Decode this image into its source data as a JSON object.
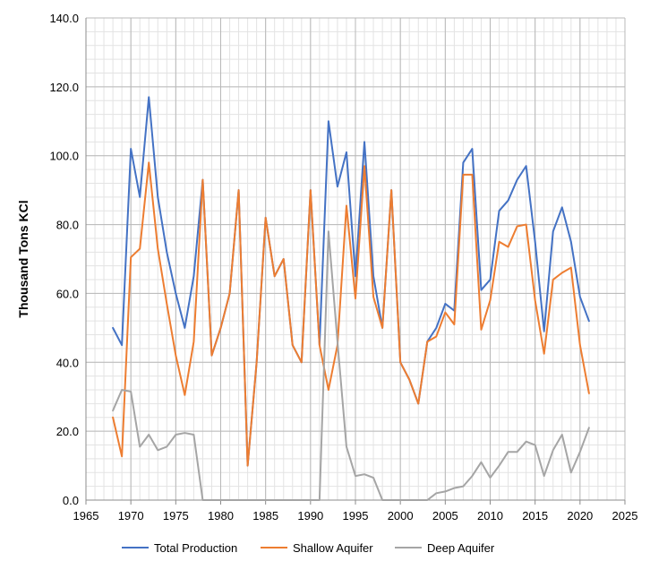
{
  "chart_data": {
    "type": "line",
    "title": "",
    "xlabel": "",
    "ylabel": "Thousand Tons KCl",
    "xlim": [
      1965,
      2025
    ],
    "ylim": [
      0,
      140
    ],
    "x_ticks": [
      1965,
      1970,
      1975,
      1980,
      1985,
      1990,
      1995,
      2000,
      2005,
      2010,
      2015,
      2020,
      2025
    ],
    "y_ticks": [
      0,
      20,
      40,
      60,
      80,
      100,
      120,
      140
    ],
    "y_tick_labels": [
      "0.0",
      "20.0",
      "40.0",
      "60.0",
      "80.0",
      "100.0",
      "120.0",
      "140.0"
    ],
    "x_minor_step": 1,
    "y_minor_step": 4,
    "grid": true,
    "legend_position": "bottom",
    "x": [
      1968,
      1969,
      1970,
      1971,
      1972,
      1973,
      1974,
      1975,
      1976,
      1977,
      1978,
      1979,
      1980,
      1981,
      1982,
      1983,
      1984,
      1985,
      1986,
      1987,
      1988,
      1989,
      1990,
      1991,
      1992,
      1993,
      1994,
      1995,
      1996,
      1997,
      1998,
      1999,
      2000,
      2001,
      2002,
      2003,
      2004,
      2005,
      2006,
      2007,
      2008,
      2009,
      2010,
      2011,
      2012,
      2013,
      2014,
      2015,
      2016,
      2017,
      2018,
      2019,
      2020,
      2021
    ],
    "series": [
      {
        "name": "Total Production",
        "color": "#4472C4",
        "values": [
          50,
          45,
          102,
          88,
          117,
          88,
          72,
          60,
          50,
          65,
          93,
          42,
          50,
          60,
          90,
          10,
          40,
          82,
          65,
          70,
          45,
          40,
          90,
          45,
          110,
          91,
          101,
          65,
          104,
          65,
          50,
          90,
          40,
          35,
          28,
          46,
          50,
          57,
          55,
          98,
          102,
          61,
          64,
          84,
          87,
          93,
          97,
          75,
          49,
          78,
          85,
          75,
          59,
          52
        ]
      },
      {
        "name": "Shallow Aquifer",
        "color": "#ED7D31",
        "values": [
          24,
          12.7,
          70.5,
          73,
          98,
          73,
          57,
          42,
          30.5,
          46,
          93,
          42,
          50,
          60,
          90,
          10,
          40,
          82,
          65,
          70,
          45,
          40,
          90,
          45,
          32,
          45,
          85.5,
          58.5,
          97,
          59,
          50,
          90,
          40,
          35,
          28,
          46,
          47.5,
          54.5,
          51,
          94.5,
          94.5,
          49.5,
          58,
          75,
          73.5,
          79.5,
          80,
          58,
          42.5,
          64,
          66,
          67.5,
          45,
          31
        ]
      },
      {
        "name": "Deep Aquifer",
        "color": "#A5A5A5",
        "values": [
          26,
          32,
          31.5,
          15.5,
          19,
          14.5,
          15.5,
          19,
          19.5,
          19,
          0,
          0,
          0,
          0,
          0,
          0,
          0,
          0,
          0,
          0,
          0,
          0,
          0,
          0,
          78,
          46,
          15.5,
          7,
          7.5,
          6.5,
          0,
          0,
          0,
          0,
          0,
          0,
          2,
          2.5,
          3.5,
          4,
          7,
          11,
          6.5,
          10,
          14,
          14,
          17,
          16,
          7,
          14.5,
          19,
          8,
          14,
          21
        ]
      }
    ]
  }
}
